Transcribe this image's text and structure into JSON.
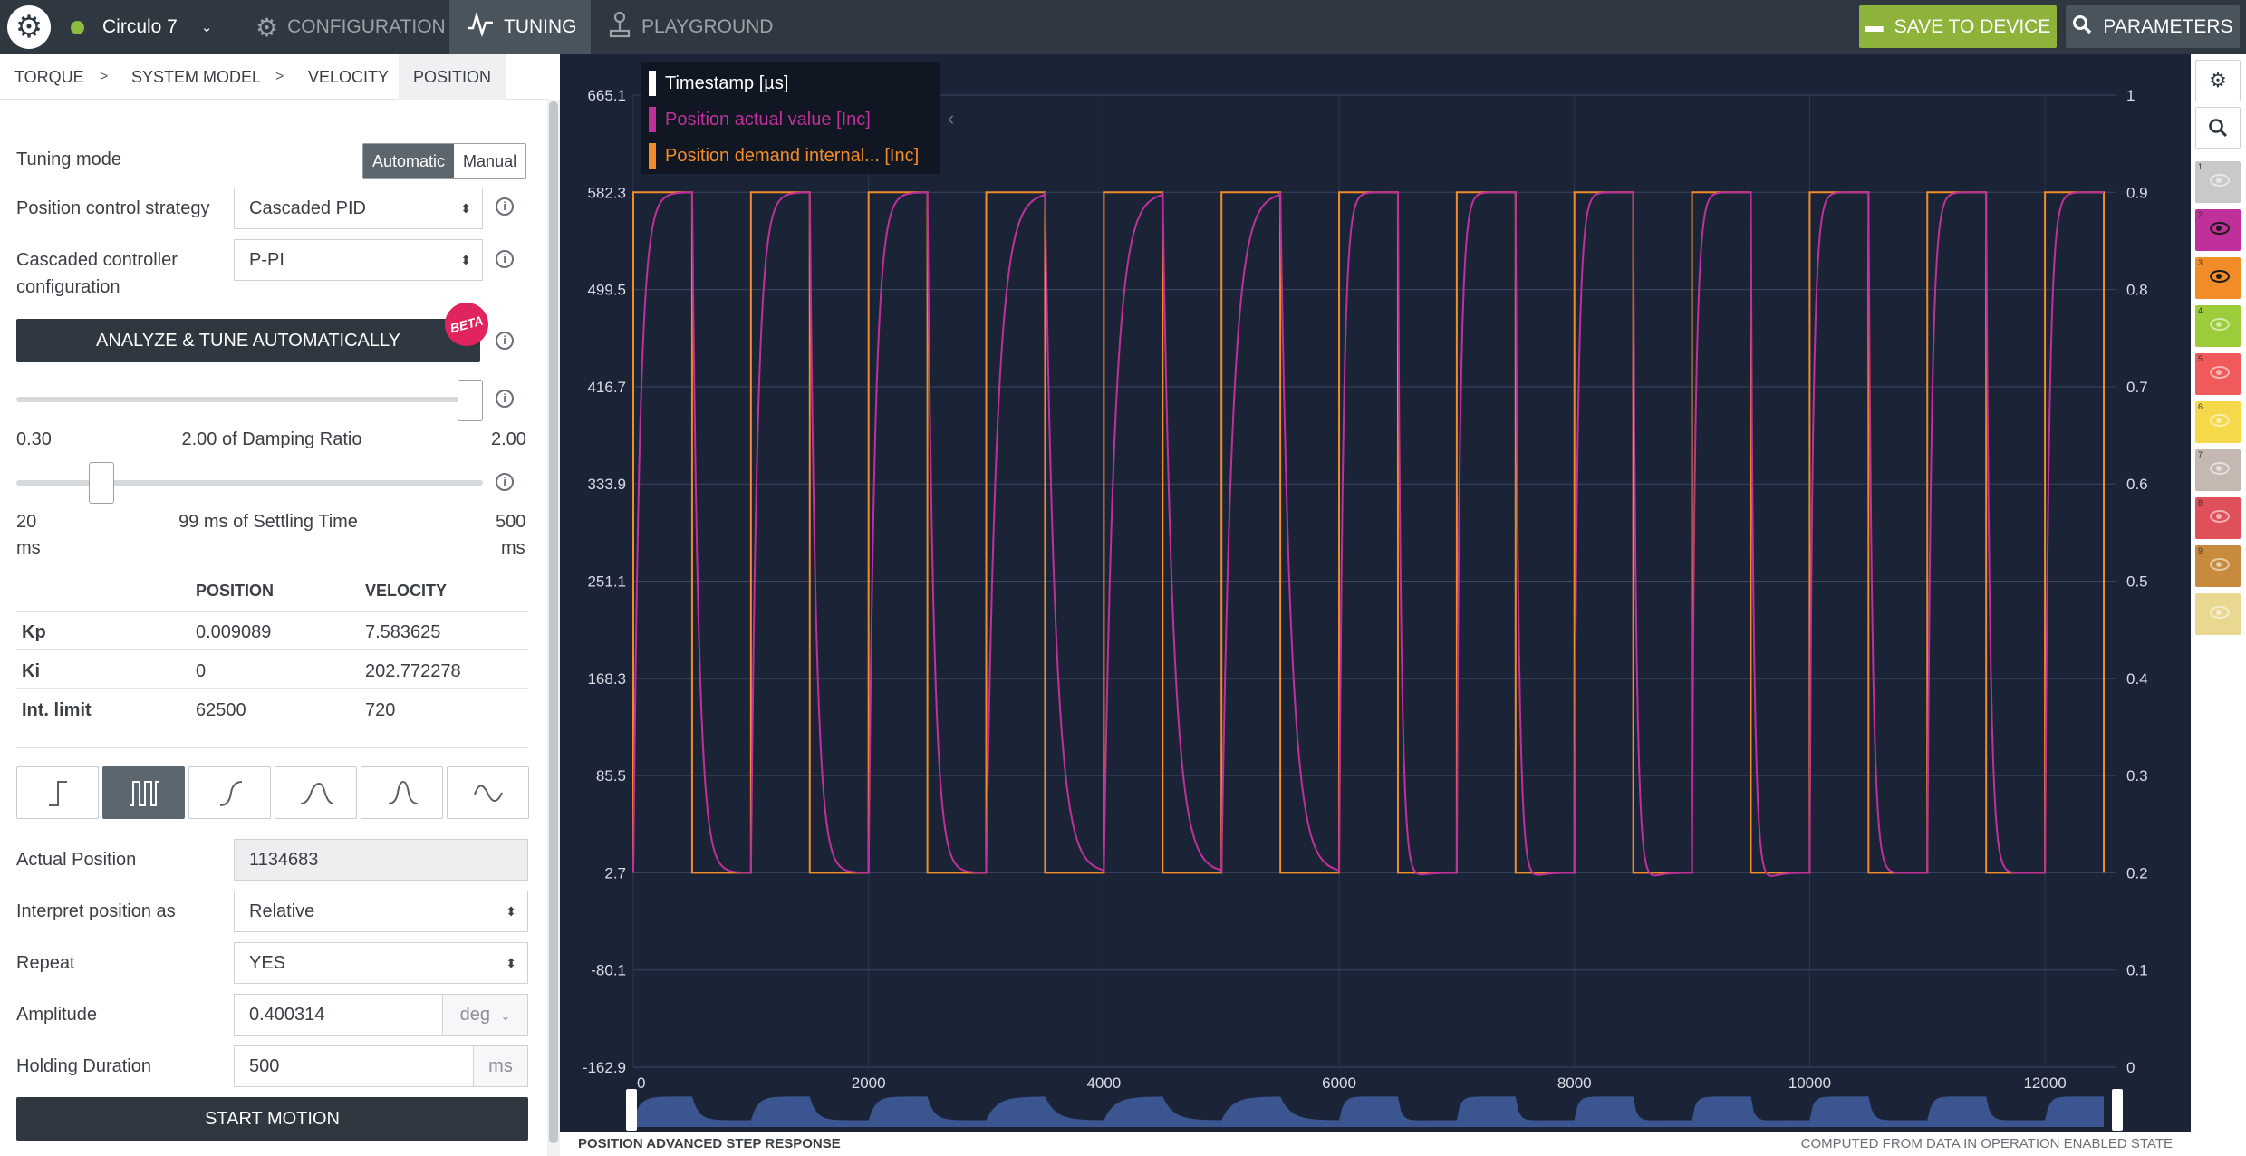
{
  "topbar": {
    "device_name": "Circulo 7",
    "status_color": "#8dbb3f",
    "tabs": [
      {
        "label": "CONFIGURATION",
        "icon": "gear-icon",
        "active": false
      },
      {
        "label": "TUNING",
        "icon": "pulse-icon",
        "active": true
      },
      {
        "label": "PLAYGROUND",
        "icon": "joystick-icon",
        "active": false
      }
    ],
    "save_label": "SAVE TO DEVICE",
    "params_label": "PARAMETERS"
  },
  "subtabs": [
    "TORQUE",
    "SYSTEM MODEL",
    "VELOCITY",
    "POSITION"
  ],
  "form": {
    "tuning_mode_label": "Tuning mode",
    "tuning_mode_options": [
      "Automatic",
      "Manual"
    ],
    "strategy_label": "Position control strategy",
    "strategy_value": "Cascaded PID",
    "cascaded_label_1": "Cascaded controller",
    "cascaded_label_2": "configuration",
    "cascaded_value": "P-PI",
    "analyze_label": "ANALYZE & TUNE AUTOMATICALLY",
    "beta_label": "BETA",
    "damping": {
      "min": "0.30",
      "max": "2.00",
      "label": "2.00 of Damping Ratio",
      "fraction": 1.0
    },
    "settling": {
      "min": "20",
      "max": "500",
      "min_unit": "ms",
      "max_unit": "ms",
      "label": "99 ms of Settling Time",
      "fraction": 0.165
    }
  },
  "gains": {
    "headers": [
      "POSITION",
      "VELOCITY"
    ],
    "rows": [
      {
        "key": "Kp",
        "position": "0.009089",
        "velocity": "7.583625"
      },
      {
        "key": "Ki",
        "position": "0",
        "velocity": "202.772278"
      },
      {
        "key": "Int. limit",
        "position": "62500",
        "velocity": "720"
      }
    ]
  },
  "motion": {
    "actual_position_label": "Actual Position",
    "actual_position_value": "1134683",
    "interpret_label": "Interpret position as",
    "interpret_value": "Relative",
    "repeat_label": "Repeat",
    "repeat_value": "YES",
    "amplitude_label": "Amplitude",
    "amplitude_value": "0.400314",
    "amplitude_unit": "deg",
    "holding_label": "Holding Duration",
    "holding_value": "500",
    "holding_unit": "ms",
    "start_label": "START MOTION"
  },
  "chart_data": {
    "type": "line",
    "legend": [
      {
        "name": "Timestamp",
        "unit": "[µs]",
        "color": "#ffffff"
      },
      {
        "name": "Position actual value",
        "unit": "[Inc]",
        "color": "#c0309b"
      },
      {
        "name": "Position demand internal...",
        "unit": "[Inc]",
        "color": "#f28c28"
      }
    ],
    "x_ticks": [
      "0",
      "2000",
      "4000",
      "6000",
      "8000",
      "10000",
      "12000"
    ],
    "y_left_ticks": [
      "665.1",
      "582.3",
      "499.5",
      "416.7",
      "333.9",
      "251.1",
      "168.3",
      "85.5",
      "2.7",
      "-80.1",
      "-162.9"
    ],
    "y_right_ticks": [
      "1",
      "0.9",
      "0.8",
      "0.7",
      "0.6",
      "0.5",
      "0.4",
      "0.3",
      "0.2",
      "0.1",
      "0"
    ],
    "xlim": [
      0,
      12600
    ],
    "ylim": [
      -162.9,
      665.1
    ],
    "demand": {
      "low": 2.7,
      "high": 582.3,
      "period": 1000,
      "high_duration": 500,
      "start": 0,
      "end": 12500
    },
    "grid": true
  },
  "footer": {
    "left": "POSITION ADVANCED STEP RESPONSE",
    "right": "COMPUTED FROM DATA IN OPERATION ENABLED STATE"
  },
  "rail": {
    "channels": [
      {
        "n": "1",
        "color": "#c9c9c9",
        "visible": false
      },
      {
        "n": "2",
        "color": "#c0309b",
        "visible": true
      },
      {
        "n": "3",
        "color": "#f28c28",
        "visible": true
      },
      {
        "n": "4",
        "color": "#9ccc3a",
        "visible": false
      },
      {
        "n": "5",
        "color": "#f05a5a",
        "visible": false
      },
      {
        "n": "6",
        "color": "#f5d94a",
        "visible": false
      },
      {
        "n": "7",
        "color": "#c4b8b0",
        "visible": false
      },
      {
        "n": "8",
        "color": "#e0505a",
        "visible": false
      },
      {
        "n": "9",
        "color": "#c88a3c",
        "visible": false
      },
      {
        "n": "",
        "color": "#e8d890",
        "visible": false
      }
    ]
  }
}
